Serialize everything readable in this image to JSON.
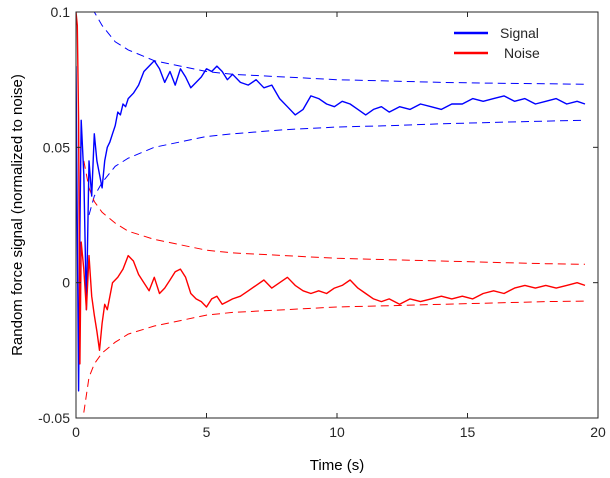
{
  "chart_data": {
    "type": "line",
    "title": "",
    "xlabel": "Time (s)",
    "ylabel": "Random force signal (normalized to noise)",
    "xlim": [
      0,
      20
    ],
    "ylim": [
      -0.05,
      0.1
    ],
    "xticks": [
      0,
      5,
      10,
      15,
      20
    ],
    "xtick_labels": [
      "0",
      "5",
      "10",
      "15",
      "20"
    ],
    "yticks": [
      -0.05,
      0,
      0.05,
      0.1
    ],
    "ytick_labels": [
      "-0.05",
      "0",
      "0.05",
      "0.1"
    ],
    "grid": false,
    "box": true,
    "legend_position": "top-right",
    "series": [
      {
        "name": "Signal",
        "color": "#0000ff",
        "style": "solid",
        "x": [
          0.0,
          0.1,
          0.15,
          0.2,
          0.3,
          0.4,
          0.5,
          0.6,
          0.7,
          0.8,
          0.9,
          1.0,
          1.1,
          1.2,
          1.3,
          1.4,
          1.5,
          1.6,
          1.7,
          1.8,
          1.9,
          2.0,
          2.2,
          2.4,
          2.6,
          2.8,
          3.0,
          3.2,
          3.4,
          3.6,
          3.8,
          4.0,
          4.2,
          4.4,
          4.6,
          4.8,
          5.0,
          5.2,
          5.4,
          5.6,
          5.8,
          6.0,
          6.3,
          6.6,
          6.9,
          7.2,
          7.5,
          7.8,
          8.1,
          8.4,
          8.7,
          9.0,
          9.3,
          9.6,
          9.9,
          10.2,
          10.5,
          10.8,
          11.1,
          11.4,
          11.7,
          12.0,
          12.4,
          12.8,
          13.2,
          13.6,
          14.0,
          14.4,
          14.8,
          15.2,
          15.6,
          16.0,
          16.4,
          16.8,
          17.2,
          17.6,
          18.0,
          18.4,
          18.8,
          19.2,
          19.5
        ],
        "y": [
          0.08,
          -0.04,
          0.02,
          0.06,
          0.04,
          -0.01,
          0.045,
          0.032,
          0.055,
          0.045,
          0.04,
          0.035,
          0.045,
          0.05,
          0.052,
          0.055,
          0.058,
          0.063,
          0.062,
          0.066,
          0.065,
          0.068,
          0.07,
          0.073,
          0.078,
          0.08,
          0.082,
          0.079,
          0.074,
          0.078,
          0.073,
          0.079,
          0.076,
          0.072,
          0.074,
          0.076,
          0.079,
          0.078,
          0.08,
          0.078,
          0.075,
          0.077,
          0.074,
          0.073,
          0.075,
          0.072,
          0.073,
          0.068,
          0.065,
          0.062,
          0.064,
          0.069,
          0.068,
          0.066,
          0.065,
          0.067,
          0.066,
          0.064,
          0.062,
          0.064,
          0.065,
          0.063,
          0.065,
          0.064,
          0.066,
          0.065,
          0.064,
          0.066,
          0.066,
          0.068,
          0.067,
          0.068,
          0.069,
          0.067,
          0.068,
          0.066,
          0.067,
          0.068,
          0.066,
          0.067,
          0.066
        ]
      },
      {
        "name": "Noise",
        "color": "#ff0000",
        "style": "solid",
        "x": [
          0.0,
          0.05,
          0.1,
          0.15,
          0.2,
          0.3,
          0.4,
          0.5,
          0.6,
          0.7,
          0.8,
          0.9,
          1.0,
          1.1,
          1.2,
          1.3,
          1.4,
          1.6,
          1.8,
          2.0,
          2.2,
          2.4,
          2.6,
          2.8,
          3.0,
          3.2,
          3.4,
          3.6,
          3.8,
          4.0,
          4.2,
          4.4,
          4.6,
          4.8,
          5.0,
          5.2,
          5.4,
          5.6,
          5.8,
          6.0,
          6.3,
          6.6,
          6.9,
          7.2,
          7.5,
          7.8,
          8.1,
          8.4,
          8.7,
          9.0,
          9.3,
          9.6,
          9.9,
          10.2,
          10.5,
          10.8,
          11.1,
          11.4,
          11.7,
          12.0,
          12.4,
          12.8,
          13.2,
          13.6,
          14.0,
          14.4,
          14.8,
          15.2,
          15.6,
          16.0,
          16.4,
          16.8,
          17.2,
          17.6,
          18.0,
          18.4,
          18.8,
          19.2,
          19.5
        ],
        "y": [
          0.1,
          0.095,
          0.06,
          -0.03,
          0.015,
          0.005,
          -0.01,
          0.01,
          -0.005,
          -0.012,
          -0.018,
          -0.025,
          -0.015,
          -0.008,
          -0.01,
          -0.005,
          0.0,
          0.002,
          0.005,
          0.01,
          0.008,
          0.003,
          0.0,
          -0.003,
          0.002,
          -0.004,
          -0.002,
          0.001,
          0.004,
          0.005,
          0.002,
          -0.004,
          -0.006,
          -0.007,
          -0.009,
          -0.006,
          -0.005,
          -0.008,
          -0.007,
          -0.006,
          -0.005,
          -0.003,
          -0.001,
          0.001,
          -0.002,
          0.0,
          0.002,
          -0.001,
          -0.003,
          -0.004,
          -0.003,
          -0.004,
          -0.002,
          -0.001,
          0.001,
          -0.002,
          -0.004,
          -0.006,
          -0.007,
          -0.006,
          -0.008,
          -0.006,
          -0.007,
          -0.006,
          -0.005,
          -0.006,
          -0.005,
          -0.006,
          -0.004,
          -0.003,
          -0.004,
          -0.002,
          -0.001,
          -0.002,
          -0.001,
          -0.002,
          -0.001,
          0.0,
          -0.001
        ]
      }
    ],
    "envelopes": [
      {
        "color": "#0000ff",
        "style": "dashed",
        "x": [
          0.5,
          0.7,
          1.0,
          1.5,
          2.0,
          3.0,
          4.0,
          5.0,
          6.0,
          8.0,
          10.0,
          12.0,
          14.0,
          16.0,
          18.0,
          19.5
        ],
        "upper": [
          0.106,
          0.1,
          0.095,
          0.089,
          0.086,
          0.082,
          0.08,
          0.078,
          0.077,
          0.076,
          0.075,
          0.0745,
          0.074,
          0.0737,
          0.0735,
          0.0733
        ],
        "lower": [
          0.025,
          0.032,
          0.037,
          0.043,
          0.046,
          0.05,
          0.052,
          0.054,
          0.055,
          0.0565,
          0.0575,
          0.058,
          0.0587,
          0.0592,
          0.0597,
          0.06
        ]
      },
      {
        "color": "#ff0000",
        "style": "dashed",
        "x": [
          0.3,
          0.5,
          0.7,
          1.0,
          1.5,
          2.0,
          3.0,
          4.0,
          5.0,
          6.0,
          8.0,
          10.0,
          12.0,
          14.0,
          16.0,
          18.0,
          19.5
        ],
        "upper": [
          0.045,
          0.035,
          0.03,
          0.026,
          0.022,
          0.019,
          0.016,
          0.014,
          0.012,
          0.011,
          0.01,
          0.009,
          0.0085,
          0.008,
          0.0075,
          0.007,
          0.0068
        ],
        "lower": [
          -0.048,
          -0.035,
          -0.03,
          -0.026,
          -0.022,
          -0.019,
          -0.016,
          -0.014,
          -0.012,
          -0.011,
          -0.01,
          -0.009,
          -0.0085,
          -0.008,
          -0.0075,
          -0.007,
          -0.0068
        ]
      }
    ]
  }
}
